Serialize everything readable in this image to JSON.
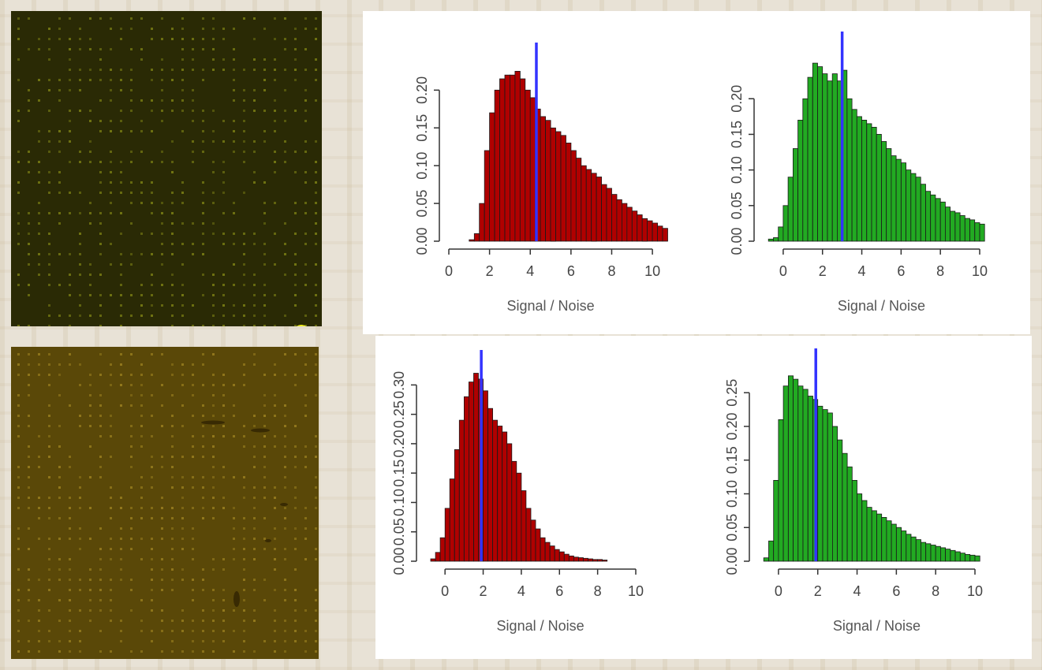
{
  "figure": {
    "scan_top_color": "#2a2a05",
    "scan_bottom_color": "#5a4808",
    "threshold_color": "#3333ff"
  },
  "chart_data": [
    {
      "type": "bar",
      "xlabel": "Signal / Noise",
      "ylabel": "",
      "bar_color": "#b00000",
      "xlim": [
        0,
        10.5
      ],
      "ylim": [
        0,
        0.24
      ],
      "x_ticks": [
        "0",
        "2",
        "4",
        "6",
        "8",
        "10"
      ],
      "y_ticks": [
        "0.00",
        "0.05",
        "0.10",
        "0.15",
        "0.20"
      ],
      "threshold": 4.3,
      "bin_start": 1.0,
      "bin_width": 0.25,
      "values": [
        0.002,
        0.01,
        0.05,
        0.12,
        0.17,
        0.2,
        0.215,
        0.22,
        0.22,
        0.225,
        0.215,
        0.2,
        0.19,
        0.175,
        0.165,
        0.16,
        0.15,
        0.145,
        0.14,
        0.13,
        0.12,
        0.11,
        0.1,
        0.095,
        0.09,
        0.085,
        0.075,
        0.07,
        0.062,
        0.055,
        0.05,
        0.045,
        0.04,
        0.035,
        0.03,
        0.027,
        0.024,
        0.02,
        0.017,
        0.014,
        0.011,
        0.008
      ]
    },
    {
      "type": "bar",
      "xlabel": "Signal / Noise",
      "ylabel": "",
      "bar_color": "#22aa22",
      "xlim": [
        -1,
        10
      ],
      "ylim": [
        0,
        0.27
      ],
      "x_ticks": [
        "0",
        "2",
        "4",
        "6",
        "8",
        "10"
      ],
      "y_ticks": [
        "0.00",
        "0.05",
        "0.10",
        "0.15",
        "0.20"
      ],
      "threshold": 3.0,
      "bin_start": -0.75,
      "bin_width": 0.25,
      "values": [
        0.003,
        0.005,
        0.02,
        0.05,
        0.09,
        0.13,
        0.17,
        0.2,
        0.23,
        0.25,
        0.245,
        0.235,
        0.225,
        0.235,
        0.225,
        0.24,
        0.2,
        0.185,
        0.175,
        0.17,
        0.165,
        0.16,
        0.15,
        0.14,
        0.13,
        0.12,
        0.115,
        0.11,
        0.1,
        0.095,
        0.09,
        0.08,
        0.07,
        0.065,
        0.06,
        0.055,
        0.048,
        0.042,
        0.04,
        0.036,
        0.032,
        0.03,
        0.026,
        0.024,
        0.022,
        0.018,
        0.015,
        0.012,
        0.012,
        0.01,
        0.008,
        0.007,
        0.006
      ]
    },
    {
      "type": "bar",
      "xlabel": "Signal / Noise",
      "ylabel": "",
      "bar_color": "#b00000",
      "xlim": [
        -1,
        10
      ],
      "ylim": [
        0,
        0.33
      ],
      "x_ticks": [
        "0",
        "2",
        "4",
        "6",
        "8",
        "10"
      ],
      "y_ticks": [
        "0.00",
        "0.05",
        "0.10",
        "0.15",
        "0.20",
        "0.25",
        "0.30"
      ],
      "threshold": 1.9,
      "bin_start": -0.75,
      "bin_width": 0.25,
      "values": [
        0.004,
        0.015,
        0.04,
        0.09,
        0.14,
        0.19,
        0.24,
        0.28,
        0.305,
        0.32,
        0.31,
        0.29,
        0.26,
        0.24,
        0.23,
        0.22,
        0.2,
        0.17,
        0.15,
        0.12,
        0.09,
        0.07,
        0.055,
        0.04,
        0.032,
        0.026,
        0.02,
        0.016,
        0.012,
        0.009,
        0.007,
        0.006,
        0.005,
        0.004,
        0.003,
        0.003,
        0.002
      ]
    },
    {
      "type": "bar",
      "xlabel": "Signal / Noise",
      "ylabel": "",
      "bar_color": "#22aa22",
      "xlim": [
        -1,
        10
      ],
      "ylim": [
        0,
        0.29
      ],
      "x_ticks": [
        "0",
        "2",
        "4",
        "6",
        "8",
        "10"
      ],
      "y_ticks": [
        "0.00",
        "0.05",
        "0.10",
        "0.15",
        "0.20",
        "0.25"
      ],
      "threshold": 1.9,
      "bin_start": -0.75,
      "bin_width": 0.25,
      "values": [
        0.005,
        0.03,
        0.12,
        0.21,
        0.26,
        0.275,
        0.27,
        0.26,
        0.255,
        0.245,
        0.24,
        0.23,
        0.225,
        0.22,
        0.2,
        0.18,
        0.16,
        0.14,
        0.12,
        0.1,
        0.09,
        0.08,
        0.075,
        0.07,
        0.065,
        0.06,
        0.055,
        0.05,
        0.045,
        0.04,
        0.036,
        0.032,
        0.028,
        0.026,
        0.024,
        0.022,
        0.02,
        0.018,
        0.016,
        0.014,
        0.012,
        0.01,
        0.009,
        0.008,
        0.006
      ]
    }
  ]
}
